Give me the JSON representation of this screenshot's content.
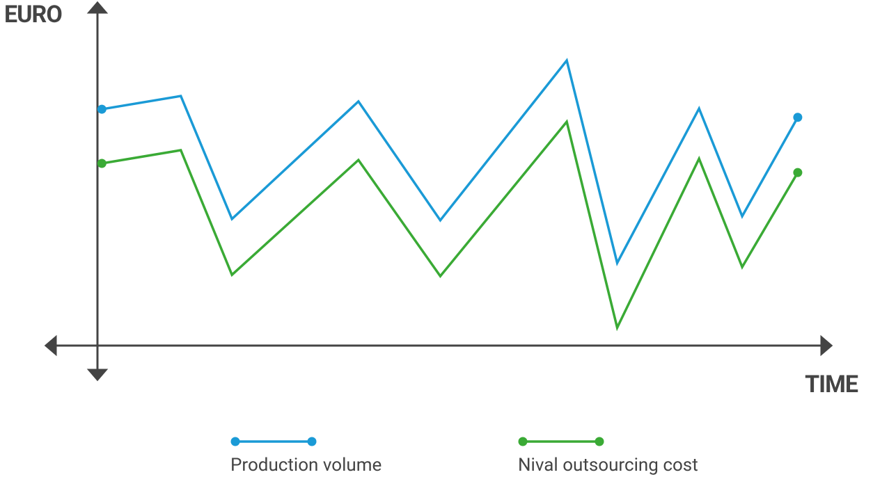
{
  "chart_data": {
    "type": "line",
    "y_label": "EURO",
    "x_label": "TIME",
    "x": [
      0.6,
      11.4,
      18.4,
      35.7,
      46.9,
      64.2,
      71.1,
      82.3,
      88.2,
      95.8
    ],
    "series": [
      {
        "name": "Production volume",
        "color": "#1a9ad6",
        "values": [
          69.8,
          73.7,
          37.4,
          72.1,
          37.0,
          84.2,
          24.4,
          70.0,
          38.2,
          67.4
        ]
      },
      {
        "name": "Nival outsourcing cost",
        "color": "#3aaa35",
        "values": [
          53.8,
          57.7,
          20.9,
          54.8,
          20.5,
          66.1,
          5.3,
          55.2,
          23.2,
          51.1
        ]
      }
    ],
    "xlim": [
      0,
      100
    ],
    "ylim": [
      0,
      100
    ]
  }
}
